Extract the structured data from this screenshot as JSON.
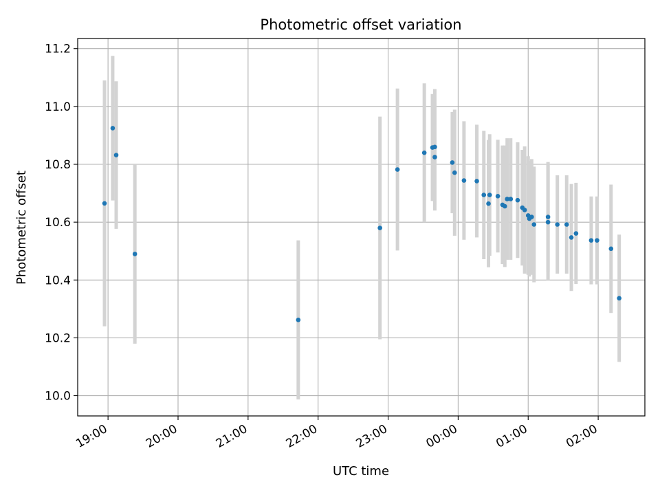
{
  "chart_data": {
    "type": "scatter",
    "title": "Photometric offset variation",
    "xlabel": "UTC time",
    "ylabel": "Photometric offset",
    "x_is_time": true,
    "xlim": [
      "18:34",
      "02:40"
    ],
    "ylim": [
      9.93,
      11.235
    ],
    "x_ticks": [
      "19:00",
      "20:00",
      "21:00",
      "22:00",
      "23:00",
      "00:00",
      "01:00",
      "02:00"
    ],
    "y_ticks": [
      "10.0",
      "10.2",
      "10.4",
      "10.6",
      "10.8",
      "11.0",
      "11.2"
    ],
    "grid": true,
    "colors": {
      "point": "#1f77b4",
      "errorbar": "#d3d3d3",
      "grid": "#b0b0b0",
      "axis": "#000000"
    },
    "points": [
      {
        "x": "18:57",
        "y": 10.665,
        "err": 0.425
      },
      {
        "x": "19:04",
        "y": 10.925,
        "err": 0.25
      },
      {
        "x": "19:07",
        "y": 10.832,
        "err": 0.255
      },
      {
        "x": "19:23",
        "y": 10.49,
        "err": 0.31
      },
      {
        "x": "21:43",
        "y": 10.262,
        "err": 0.275
      },
      {
        "x": "22:53",
        "y": 10.58,
        "err": 0.385
      },
      {
        "x": "23:08",
        "y": 10.782,
        "err": 0.28
      },
      {
        "x": "23:31",
        "y": 10.84,
        "err": 0.24
      },
      {
        "x": "23:38",
        "y": 10.858,
        "err": 0.185
      },
      {
        "x": "23:40",
        "y": 10.86,
        "err": 0.2
      },
      {
        "x": "23:40",
        "y": 10.825,
        "err": 0.185
      },
      {
        "x": "23:55",
        "y": 10.806,
        "err": 0.175
      },
      {
        "x": "23:57",
        "y": 10.771,
        "err": 0.218
      },
      {
        "x": "00:05",
        "y": 10.744,
        "err": 0.205
      },
      {
        "x": "00:16",
        "y": 10.742,
        "err": 0.195
      },
      {
        "x": "00:22",
        "y": 10.694,
        "err": 0.222
      },
      {
        "x": "00:26",
        "y": 10.664,
        "err": 0.22
      },
      {
        "x": "00:27",
        "y": 10.694,
        "err": 0.21
      },
      {
        "x": "00:34",
        "y": 10.69,
        "err": 0.195
      },
      {
        "x": "00:38",
        "y": 10.66,
        "err": 0.205
      },
      {
        "x": "00:40",
        "y": 10.655,
        "err": 0.21
      },
      {
        "x": "00:42",
        "y": 10.68,
        "err": 0.21
      },
      {
        "x": "00:45",
        "y": 10.68,
        "err": 0.21
      },
      {
        "x": "00:51",
        "y": 10.676,
        "err": 0.2
      },
      {
        "x": "00:55",
        "y": 10.65,
        "err": 0.2
      },
      {
        "x": "00:57",
        "y": 10.642,
        "err": 0.22
      },
      {
        "x": "01:00",
        "y": 10.623,
        "err": 0.205
      },
      {
        "x": "01:01",
        "y": 10.612,
        "err": 0.2
      },
      {
        "x": "01:03",
        "y": 10.618,
        "err": 0.2
      },
      {
        "x": "01:05",
        "y": 10.592,
        "err": 0.2
      },
      {
        "x": "01:17",
        "y": 10.618,
        "err": 0.19
      },
      {
        "x": "01:17",
        "y": 10.6,
        "err": 0.2
      },
      {
        "x": "01:25",
        "y": 10.592,
        "err": 0.17
      },
      {
        "x": "01:33",
        "y": 10.592,
        "err": 0.17
      },
      {
        "x": "01:37",
        "y": 10.547,
        "err": 0.185
      },
      {
        "x": "01:41",
        "y": 10.561,
        "err": 0.175
      },
      {
        "x": "01:54",
        "y": 10.537,
        "err": 0.152
      },
      {
        "x": "01:59",
        "y": 10.537,
        "err": 0.152
      },
      {
        "x": "02:11",
        "y": 10.508,
        "err": 0.222
      },
      {
        "x": "02:18",
        "y": 10.337,
        "err": 0.22
      }
    ]
  }
}
